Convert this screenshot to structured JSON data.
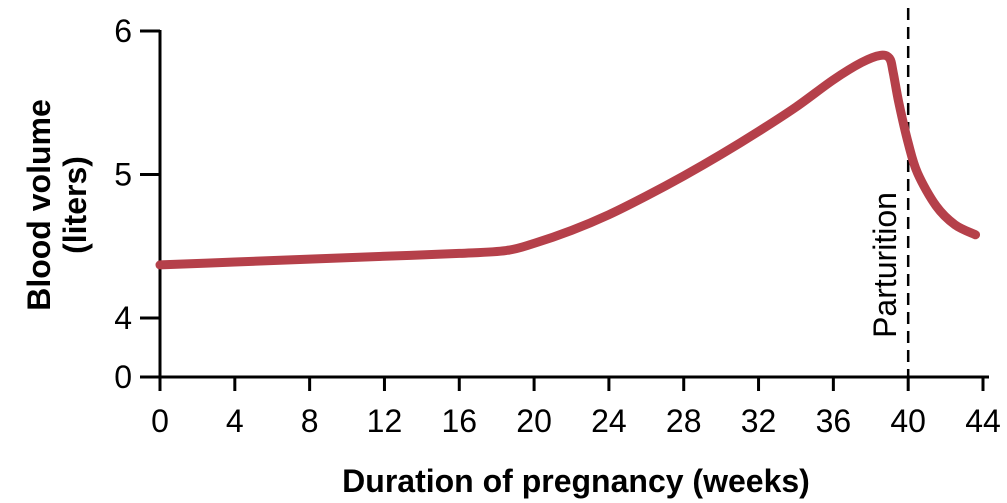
{
  "chart_data": {
    "type": "line",
    "xlabel": "Duration of pregnancy (weeks)",
    "ylabel_lines": [
      "Blood volume",
      "(liters)"
    ],
    "x_ticks": [
      0,
      4,
      8,
      12,
      16,
      20,
      24,
      28,
      32,
      36,
      40,
      44
    ],
    "y_ticks": [
      0,
      4,
      5,
      6
    ],
    "xlim": [
      0,
      44
    ],
    "y_axis_break": "0 at origin, 4 to 6 scaled",
    "grid": false,
    "line_color": "#b5404a",
    "series": [
      {
        "points": [
          [
            0,
            4.37
          ],
          [
            4,
            4.39
          ],
          [
            8,
            4.41
          ],
          [
            12,
            4.43
          ],
          [
            16,
            4.45
          ],
          [
            18.5,
            4.47
          ],
          [
            20,
            4.52
          ],
          [
            22,
            4.61
          ],
          [
            24,
            4.72
          ],
          [
            26,
            4.85
          ],
          [
            28,
            4.99
          ],
          [
            30,
            5.14
          ],
          [
            32,
            5.3
          ],
          [
            34,
            5.47
          ],
          [
            36,
            5.66
          ],
          [
            37.5,
            5.78
          ],
          [
            38.5,
            5.83
          ],
          [
            39.0,
            5.81
          ],
          [
            39.2,
            5.71
          ],
          [
            39.5,
            5.5
          ],
          [
            40,
            5.22
          ],
          [
            40.5,
            5.01
          ],
          [
            41.5,
            4.78
          ],
          [
            42.5,
            4.65
          ],
          [
            43.6,
            4.58
          ]
        ]
      }
    ],
    "annotations": [
      {
        "label": "Parturition",
        "x": 40,
        "style": "dashed-vertical"
      }
    ]
  }
}
